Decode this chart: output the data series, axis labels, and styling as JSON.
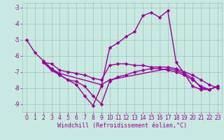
{
  "line1": {
    "x": [
      0,
      1,
      2,
      3,
      4,
      5,
      6,
      7,
      8,
      9,
      10,
      11,
      12,
      13,
      14,
      15,
      16,
      17,
      18,
      19,
      20,
      21,
      22,
      23
    ],
    "y": [
      -5.0,
      -5.8,
      -6.3,
      -6.8,
      -7.2,
      -7.5,
      -7.8,
      -8.5,
      -9.1,
      -7.9,
      -5.5,
      -5.2,
      -4.8,
      -4.5,
      -3.5,
      -3.3,
      -3.6,
      -3.2,
      -6.4,
      -7.1,
      -7.9,
      -8.1,
      -8.1,
      -7.9
    ],
    "color": "#990099",
    "marker": "D",
    "ms": 2.2,
    "lw": 1.0
  },
  "line2": {
    "x": [
      2,
      3,
      4,
      5,
      6,
      7,
      8,
      9,
      10,
      11,
      12,
      13,
      14,
      15,
      16,
      17,
      18,
      19,
      20,
      21,
      22,
      23
    ],
    "y": [
      -6.4,
      -6.5,
      -6.9,
      -7.0,
      -7.1,
      -7.2,
      -7.4,
      -7.5,
      -6.6,
      -6.5,
      -6.5,
      -6.6,
      -6.6,
      -6.7,
      -6.7,
      -6.7,
      -6.8,
      -7.0,
      -7.2,
      -7.5,
      -7.8,
      -8.0
    ],
    "color": "#990099",
    "marker": "D",
    "ms": 2.2,
    "lw": 1.0
  },
  "line3": {
    "x": [
      2,
      3,
      4,
      5,
      6,
      7,
      8,
      9,
      10,
      11,
      12,
      13,
      14,
      15,
      16,
      17,
      18,
      19,
      20,
      21,
      22,
      23
    ],
    "y": [
      -6.4,
      -6.9,
      -7.2,
      -7.5,
      -7.6,
      -7.9,
      -8.5,
      -9.0,
      -7.6,
      -7.3,
      -7.2,
      -7.0,
      -6.9,
      -6.8,
      -6.8,
      -6.9,
      -7.0,
      -7.2,
      -7.5,
      -7.9,
      -8.1,
      -7.9
    ],
    "color": "#990099",
    "marker": "D",
    "ms": 2.2,
    "lw": 1.0
  },
  "line4": {
    "x": [
      2,
      3,
      4,
      9,
      10,
      17,
      18,
      19,
      20,
      21,
      22,
      23
    ],
    "y": [
      -6.4,
      -6.8,
      -7.1,
      -7.8,
      -7.5,
      -6.8,
      -6.9,
      -7.1,
      -7.4,
      -8.0,
      -8.1,
      -7.9
    ],
    "color": "#990099",
    "marker": "D",
    "ms": 2.2,
    "lw": 1.0
  },
  "bg_color": "#c8e8e0",
  "grid_color": "#a0c0b8",
  "xlabel": "Windchill (Refroidissement éolien,°C)",
  "xlabel_fontsize": 6.0,
  "xlim": [
    -0.5,
    23.5
  ],
  "ylim": [
    -9.5,
    -2.7
  ],
  "yticks": [
    -9,
    -8,
    -7,
    -6,
    -5,
    -4,
    -3
  ],
  "xticks": [
    0,
    1,
    2,
    3,
    4,
    5,
    6,
    7,
    8,
    9,
    10,
    11,
    12,
    13,
    14,
    15,
    16,
    17,
    18,
    19,
    20,
    21,
    22,
    23
  ],
  "tick_fontsize": 5.5,
  "tick_color": "#990099"
}
